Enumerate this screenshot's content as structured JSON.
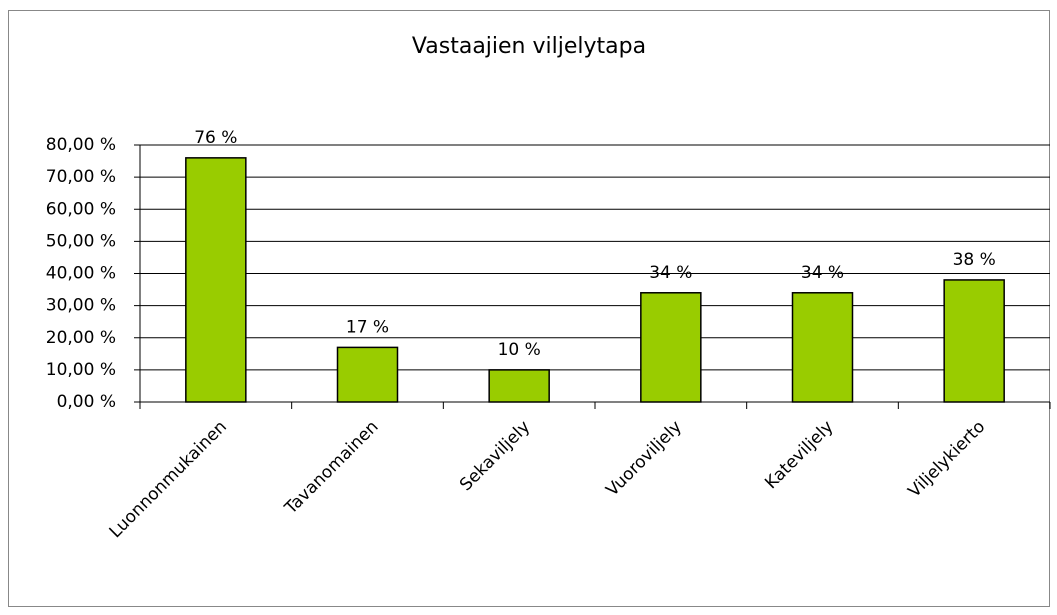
{
  "chart_data": {
    "type": "bar",
    "title": "Vastaajien viljelytapa",
    "categories": [
      "Luonnonmukainen",
      "Tavanomainen",
      "Sekaviljely",
      "Vuoroviljely",
      "Kateviljely",
      "Viljelykierto"
    ],
    "values": [
      76,
      17,
      10,
      34,
      34,
      38
    ],
    "value_labels": [
      "76 %",
      "17 %",
      "10 %",
      "34 %",
      "34 %",
      "38 %"
    ],
    "color": "#99cc00",
    "ylim": [
      0,
      80
    ],
    "yticks": [
      {
        "value": 0,
        "label": "0,00 %"
      },
      {
        "value": 10,
        "label": "10,00 %"
      },
      {
        "value": 20,
        "label": "20,00 %"
      },
      {
        "value": 30,
        "label": "30,00 %"
      },
      {
        "value": 40,
        "label": "40,00 %"
      },
      {
        "value": 50,
        "label": "50,00 %"
      },
      {
        "value": 60,
        "label": "60,00 %"
      },
      {
        "value": 70,
        "label": "70,00 %"
      },
      {
        "value": 80,
        "label": "80,00 %"
      }
    ],
    "grid": true
  }
}
